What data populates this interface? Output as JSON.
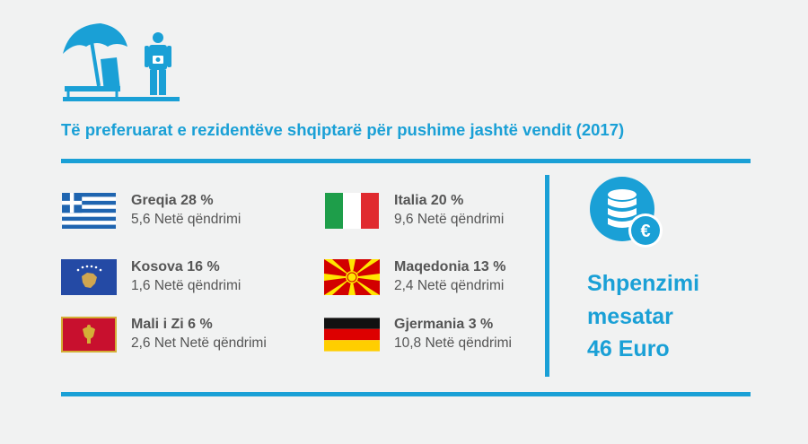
{
  "title": "Të preferuarat e rezidentëve shqiptarë për pushime jashtë vendit (2017)",
  "icons": {
    "header": "beach-tourist-icon",
    "spending": "coins-euro-icon"
  },
  "colors": {
    "accent": "#1aa0d6",
    "text": "#555555",
    "background": "#f1f2f2"
  },
  "destinations": [
    {
      "country": "Greqia  28 %",
      "stay": "5,6 Netë qëndrimi",
      "flag": "greece-flag"
    },
    {
      "country": "Kosova 16 %",
      "stay": "1,6 Netë qëndrimi",
      "flag": "kosovo-flag"
    },
    {
      "country": "Mali i Zi 6 %",
      "stay": "2,6 Net Netë qëndrimi",
      "flag": "montenegro-flag"
    },
    {
      "country": "Italia 20 %",
      "stay": "9,6 Netë qëndrimi",
      "flag": "italy-flag"
    },
    {
      "country": "Maqedonia 13 %",
      "stay": "2,4 Netë qëndrimi",
      "flag": "macedonia-flag"
    },
    {
      "country": "Gjermania 3 %",
      "stay": "10,8 Netë qëndrimi",
      "flag": "germany-flag"
    }
  ],
  "spending": {
    "line1": "Shpenzimi",
    "line2": "mesatar",
    "line3": "46 Euro",
    "symbol": "€"
  }
}
